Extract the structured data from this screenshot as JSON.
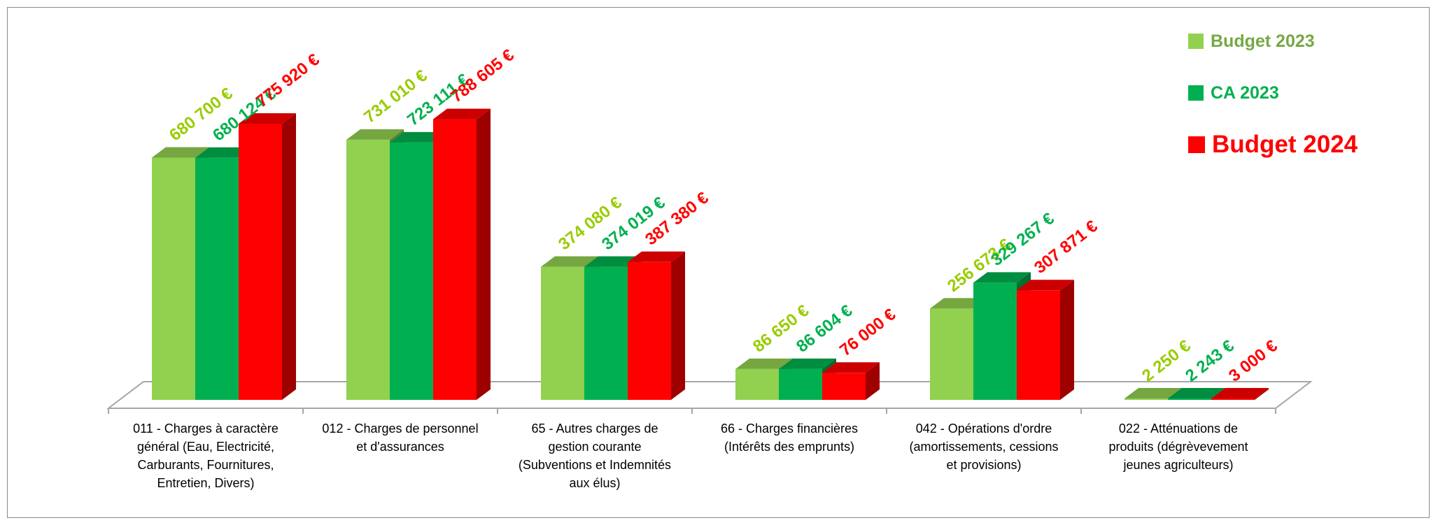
{
  "chart_data": {
    "type": "bar",
    "categories": [
      "011 - Charges à caractère\ngénéral (Eau, Electricité,\nCarburants, Fournitures,\nEntretien, Divers)",
      "012 - Charges de personnel\net d'assurances",
      "65 - Autres charges de\ngestion courante\n(Subventions et Indemnités\naux élus)",
      "66 - Charges financières\n(Intérêts des emprunts)",
      "042 - Opérations d'ordre\n(amortissements, cessions\net provisions)",
      "022 - Atténuations de\nproduits (dégrèvevement\njeunes agriculteurs)"
    ],
    "series": [
      {
        "name": "Budget 2023",
        "color": "#92d050",
        "values": [
          680700,
          731010,
          374080,
          86650,
          256673,
          2250
        ],
        "labels": [
          "680 700 €",
          "731 010 €",
          "374 080 €",
          "86 650 €",
          "256 673 €",
          "2 250 €"
        ]
      },
      {
        "name": "CA 2023",
        "color": "#00b050",
        "values": [
          680124,
          723111,
          374019,
          86604,
          329267,
          2243
        ],
        "labels": [
          "680 124 €",
          "723 111 €",
          "374 019 €",
          "86 604 €",
          "329 267 €",
          "2 243 €"
        ]
      },
      {
        "name": "Budget 2024",
        "color": "#ff0000",
        "values": [
          775920,
          788605,
          387380,
          76000,
          307871,
          3000
        ],
        "labels": [
          "775 920 €",
          "788 605 €",
          "387 380 €",
          "76 000 €",
          "307 871 €",
          "3 000 €"
        ]
      }
    ],
    "title": "",
    "xlabel": "",
    "ylabel": "",
    "ylim": [
      0,
      800000
    ],
    "grid": false,
    "legend_position": "top-right",
    "label_colors": [
      "#99cc00",
      "#00b050",
      "#ff0000"
    ]
  },
  "legend": {
    "items": [
      {
        "label": "Budget 2023",
        "color": "#92d050",
        "text_color": "#76a844"
      },
      {
        "label": "CA 2023",
        "color": "#00b050",
        "text_color": "#00b050"
      },
      {
        "label": "Budget 2024",
        "color": "#ff0000",
        "text_color": "#ff0000"
      }
    ]
  }
}
